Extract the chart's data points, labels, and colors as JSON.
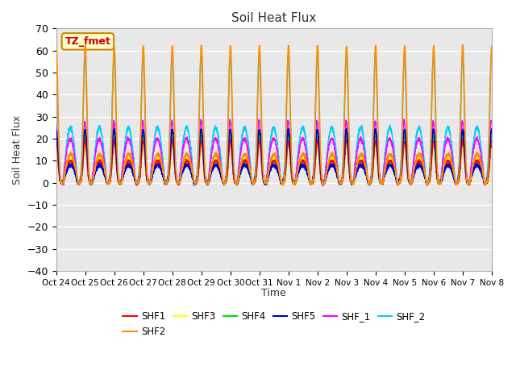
{
  "title": "Soil Heat Flux",
  "ylabel": "Soil Heat Flux",
  "xlabel": "Time",
  "ylim": [
    -40,
    70
  ],
  "annotation": "TZ_fmet",
  "series_colors": {
    "SHF1": "#ff0000",
    "SHF2": "#ff8c00",
    "SHF3": "#ffff00",
    "SHF4": "#00dd00",
    "SHF5": "#0000cc",
    "SHF_1": "#ff00ff",
    "SHF_2": "#00ccff"
  },
  "xtick_labels": [
    "Oct 24",
    "Oct 25",
    "Oct 26",
    "Oct 27",
    "Oct 28",
    "Oct 29",
    "Oct 30",
    "Oct 31",
    "Nov 1",
    "Nov 2",
    "Nov 3",
    "Nov 4",
    "Nov 5",
    "Nov 6",
    "Nov 7",
    "Nov 8"
  ],
  "yticks": [
    -40,
    -30,
    -20,
    -10,
    0,
    10,
    20,
    30,
    40,
    50,
    60,
    70
  ],
  "background_color": "#e8e8e8",
  "grid_color": "#ffffff",
  "n_days": 15,
  "points_per_day": 288
}
